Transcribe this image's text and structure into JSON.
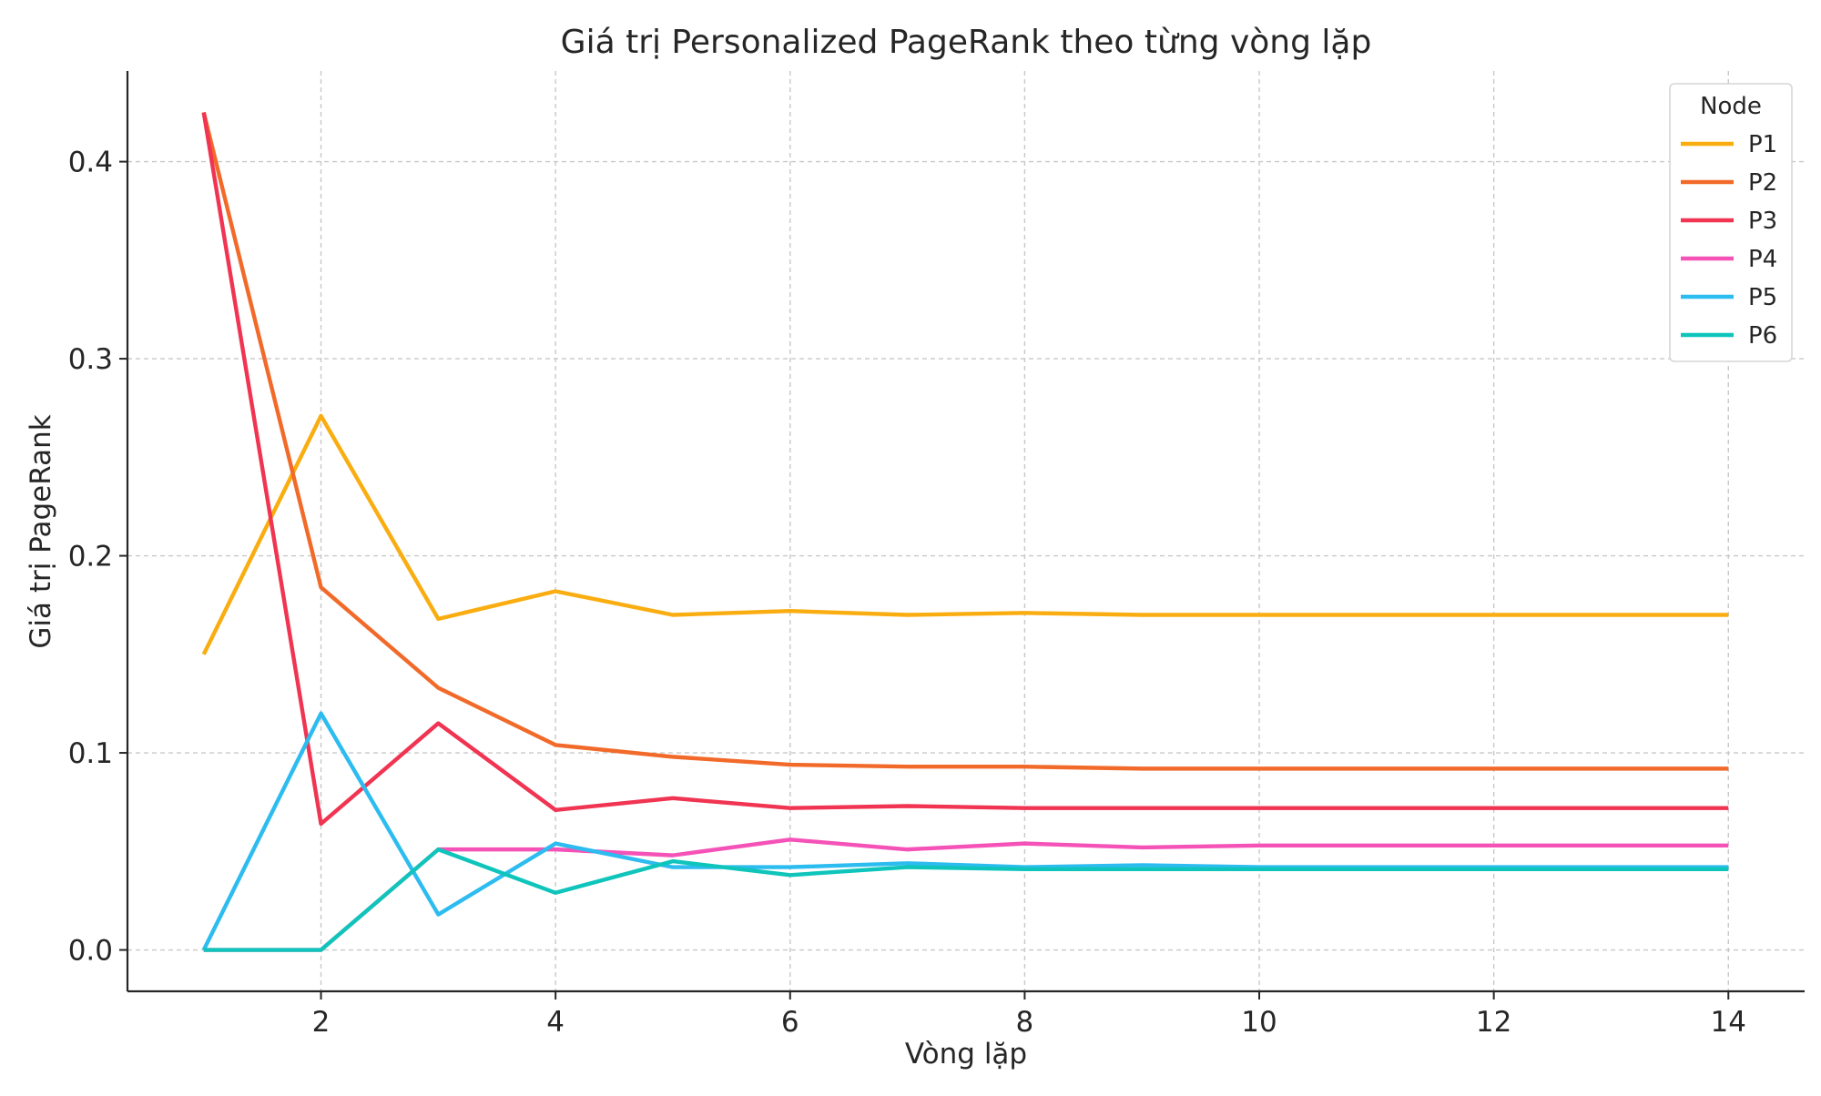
{
  "chart_data": {
    "type": "line",
    "title": "Giá trị Personalized PageRank theo từng vòng lặp",
    "xlabel": "Vòng lặp",
    "ylabel": "Giá trị PageRank",
    "xlim": [
      0.35,
      14.65
    ],
    "ylim": [
      -0.021,
      0.446
    ],
    "xticks": [
      2,
      4,
      6,
      8,
      10,
      12,
      14
    ],
    "xtick_labels": [
      "2",
      "4",
      "6",
      "8",
      "10",
      "12",
      "14"
    ],
    "yticks": [
      0.0,
      0.1,
      0.2,
      0.3,
      0.4
    ],
    "ytick_labels": [
      "0.0",
      "0.1",
      "0.2",
      "0.3",
      "0.4"
    ],
    "grid": true,
    "legend": {
      "title": "Node",
      "position": "top-right"
    },
    "x": [
      1,
      2,
      3,
      4,
      5,
      6,
      7,
      8,
      9,
      10,
      11,
      12,
      13,
      14
    ],
    "series": [
      {
        "name": "P1",
        "color": "#f9ad10",
        "values": [
          0.15,
          0.271,
          0.168,
          0.182,
          0.17,
          0.172,
          0.17,
          0.171,
          0.17,
          0.17,
          0.17,
          0.17,
          0.17,
          0.17
        ]
      },
      {
        "name": "P2",
        "color": "#f26a2a",
        "values": [
          0.425,
          0.184,
          0.133,
          0.104,
          0.098,
          0.094,
          0.093,
          0.093,
          0.092,
          0.092,
          0.092,
          0.092,
          0.092,
          0.092
        ]
      },
      {
        "name": "P3",
        "color": "#f03452",
        "values": [
          0.425,
          0.064,
          0.115,
          0.071,
          0.077,
          0.072,
          0.073,
          0.072,
          0.072,
          0.072,
          0.072,
          0.072,
          0.072,
          0.072
        ]
      },
      {
        "name": "P4",
        "color": "#f552b8",
        "values": [
          0.0,
          0.0,
          0.051,
          0.051,
          0.048,
          0.056,
          0.051,
          0.054,
          0.052,
          0.053,
          0.053,
          0.053,
          0.053,
          0.053
        ]
      },
      {
        "name": "P5",
        "color": "#2dbcf0",
        "values": [
          0.0,
          0.12,
          0.018,
          0.054,
          0.042,
          0.042,
          0.044,
          0.042,
          0.043,
          0.042,
          0.042,
          0.042,
          0.042,
          0.042
        ]
      },
      {
        "name": "P6",
        "color": "#0fc5bb",
        "values": [
          0.0,
          0.0,
          0.051,
          0.029,
          0.045,
          0.038,
          0.042,
          0.041,
          0.041,
          0.041,
          0.041,
          0.041,
          0.041,
          0.041
        ]
      }
    ]
  }
}
